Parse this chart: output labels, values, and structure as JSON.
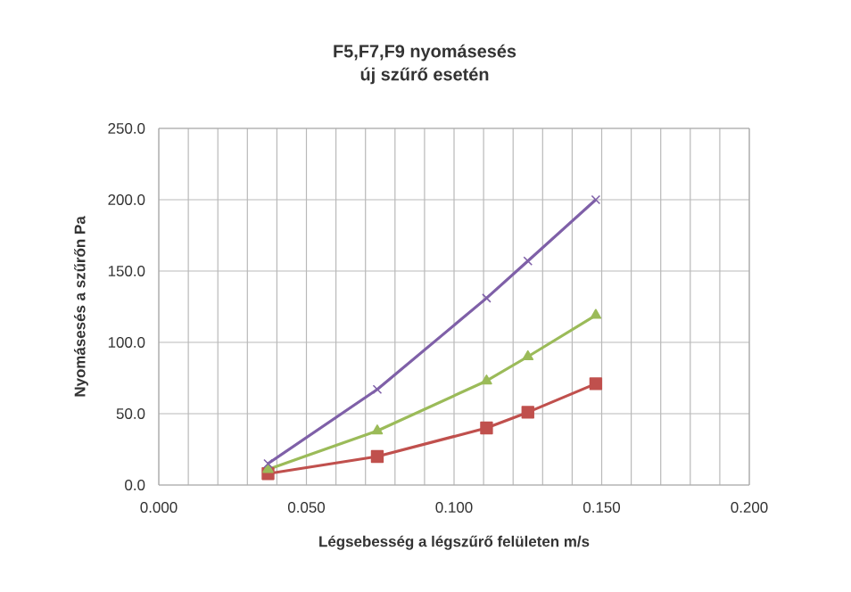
{
  "chart_data": {
    "type": "line",
    "title": "F5,F7,F9 nyomásesés\núj szűrő esetén",
    "xlabel": "Légsebesség a légszűrő felületen  m/s",
    "ylabel": "Nyomásesés a szűrőn  Pa",
    "series": [
      {
        "color": "#c0504d",
        "marker": "square",
        "x": [
          0.037,
          0.074,
          0.111,
          0.125,
          0.148
        ],
        "values": [
          8,
          20,
          40,
          51,
          71
        ]
      },
      {
        "color": "#9bbb59",
        "marker": "triangle",
        "x": [
          0.037,
          0.074,
          0.111,
          0.125,
          0.148
        ],
        "values": [
          11,
          38,
          73,
          90,
          119
        ]
      },
      {
        "color": "#7f60a8",
        "marker": "cross",
        "x": [
          0.037,
          0.074,
          0.111,
          0.125,
          0.148
        ],
        "values": [
          15,
          67,
          131,
          157,
          200
        ]
      }
    ],
    "xlim": [
      0,
      0.2
    ],
    "ylim": [
      0,
      250
    ],
    "xticks": [
      {
        "value": 0,
        "label": "0.000"
      },
      {
        "value": 0.05,
        "label": "0.050"
      },
      {
        "value": 0.1,
        "label": "0.100"
      },
      {
        "value": 0.15,
        "label": "0.150"
      },
      {
        "value": 0.2,
        "label": "0.200"
      }
    ],
    "yticks": [
      {
        "value": 0,
        "label": "0.0"
      },
      {
        "value": 50,
        "label": "50.0"
      },
      {
        "value": 100,
        "label": "100.0"
      },
      {
        "value": 150,
        "label": "150.0"
      },
      {
        "value": 200,
        "label": "200.0"
      },
      {
        "value": 250,
        "label": "250.0"
      }
    ],
    "grid": true,
    "line_style": "solid"
  }
}
